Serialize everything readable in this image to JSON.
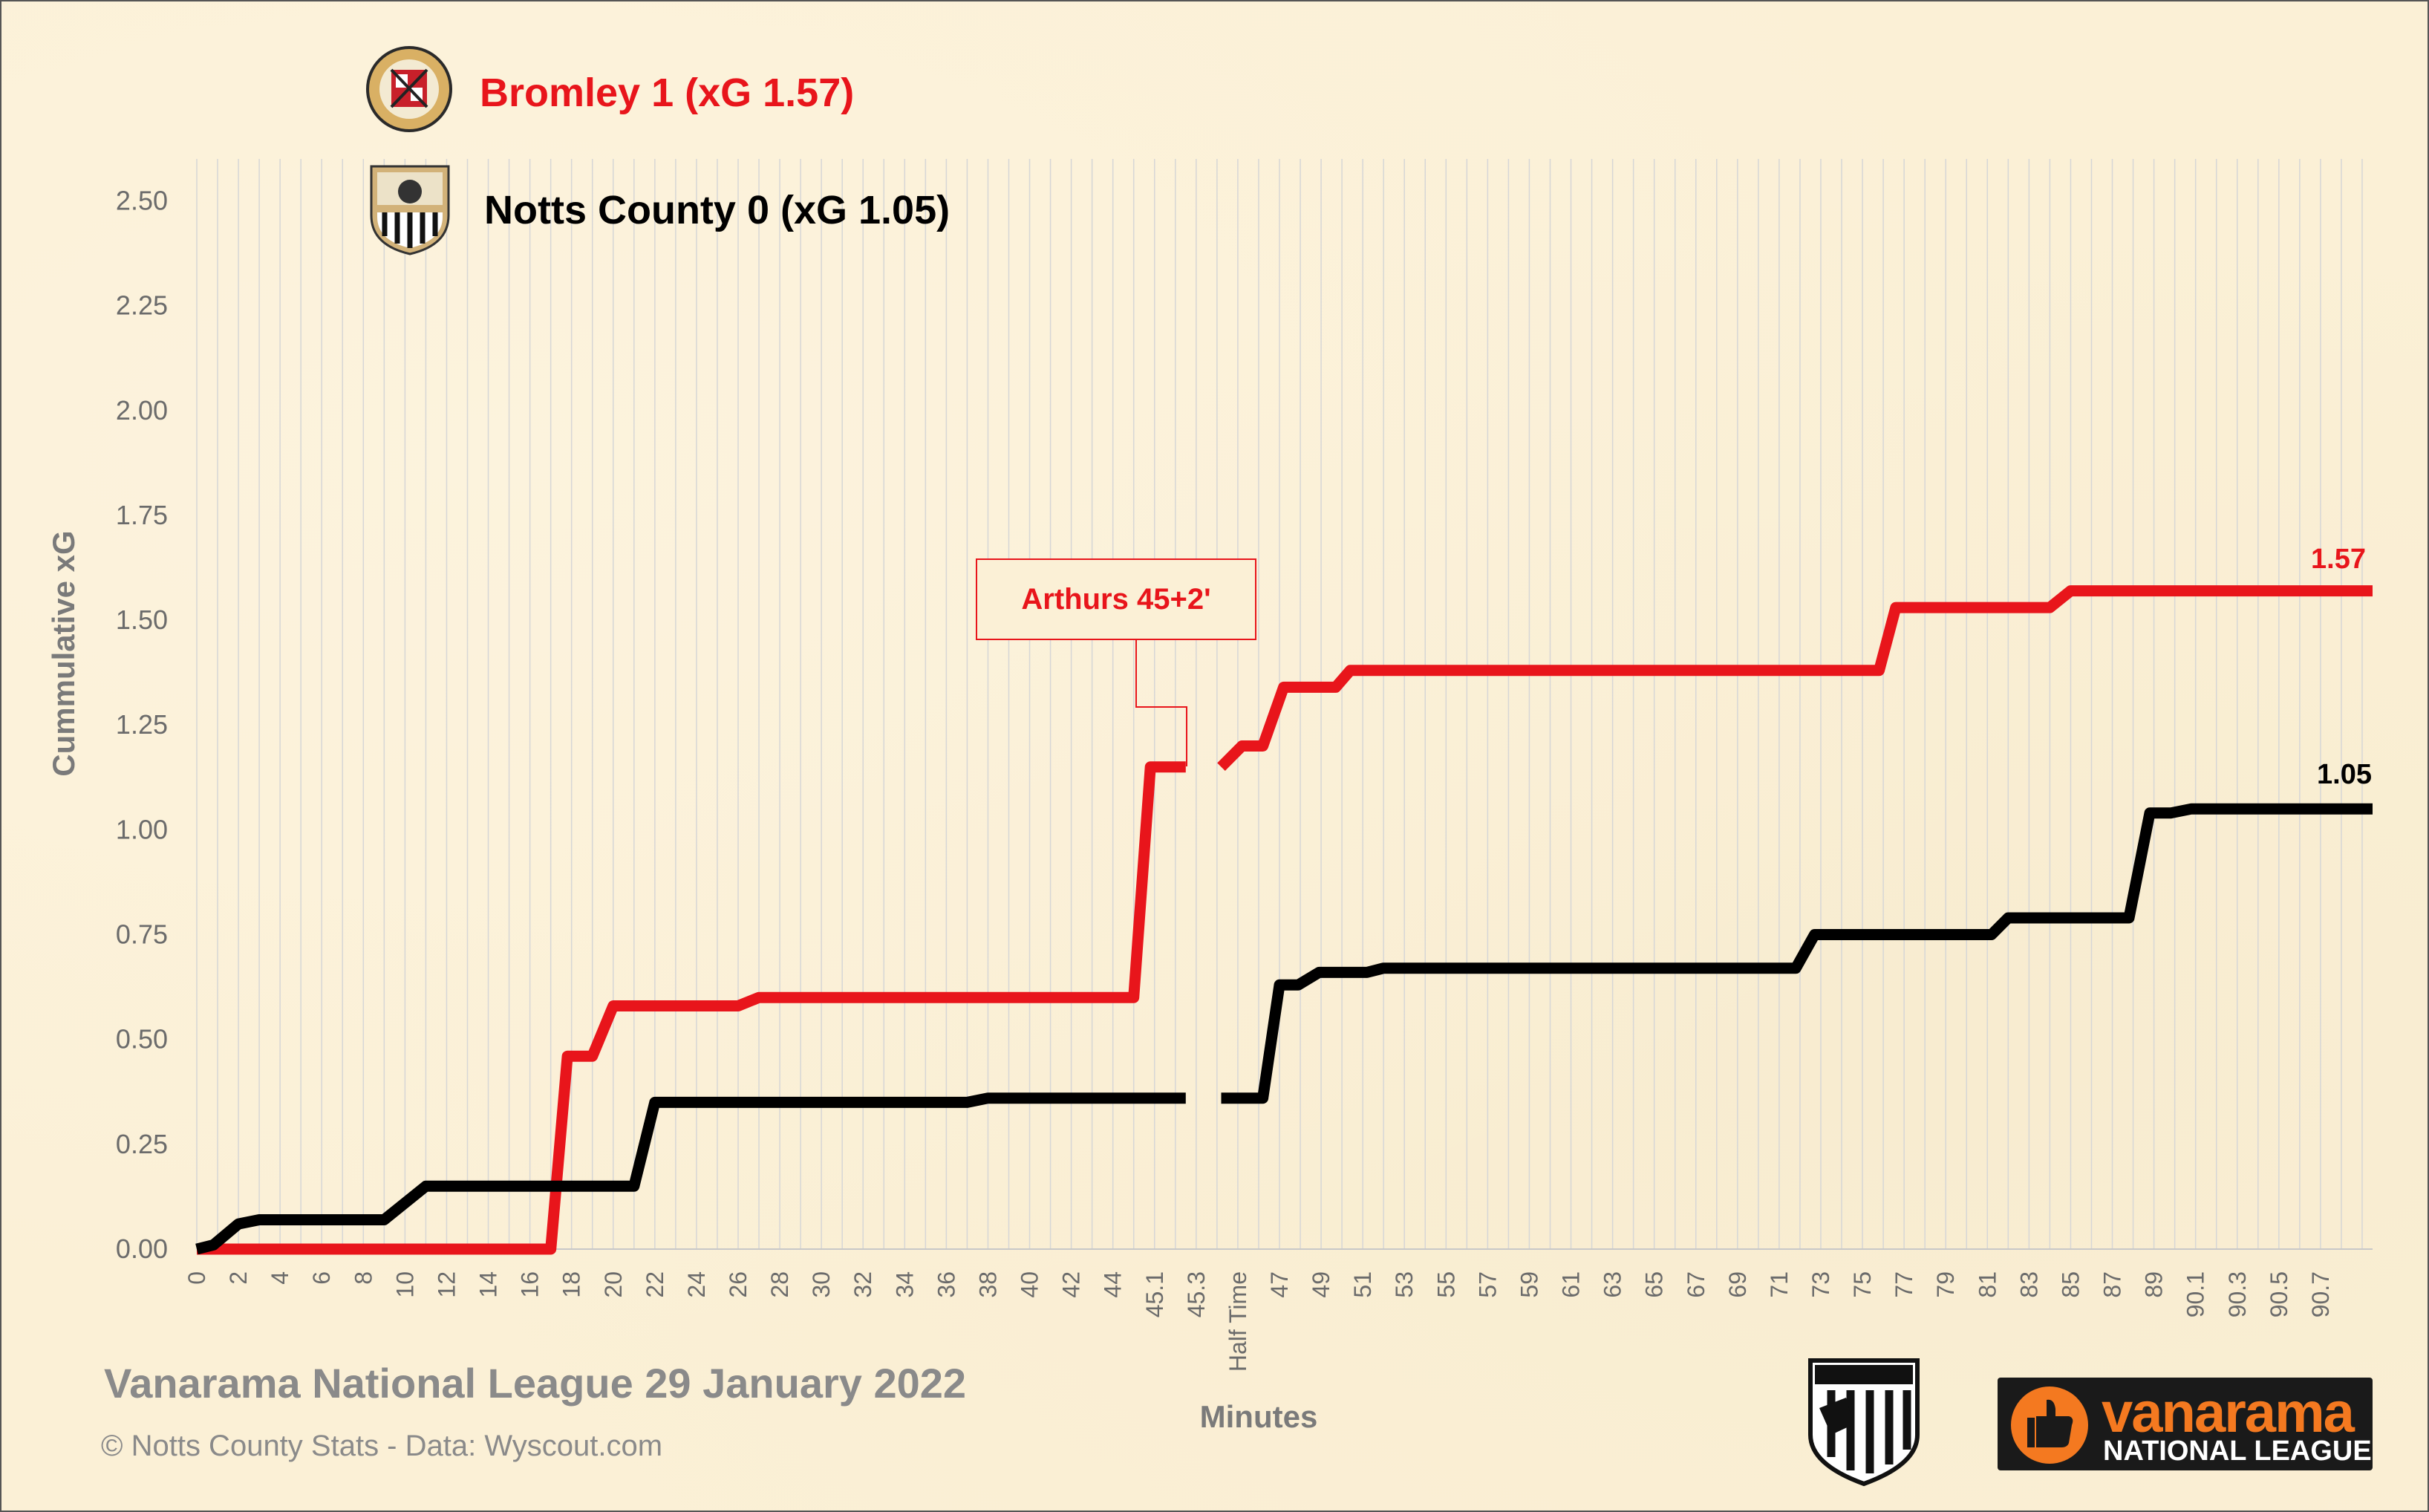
{
  "chart_data": {
    "type": "line",
    "ylabel": "Cummulative  xG",
    "xlabel": "Minutes",
    "ylim": [
      0,
      2.6
    ],
    "y_ticks": [
      "0.00",
      "0.25",
      "0.50",
      "0.75",
      "1.00",
      "1.25",
      "1.50",
      "1.75",
      "2.00",
      "2.25",
      "2.50"
    ],
    "x_tick_labels": [
      "0",
      "2",
      "4",
      "6",
      "8",
      "10",
      "12",
      "14",
      "16",
      "18",
      "20",
      "22",
      "24",
      "26",
      "28",
      "30",
      "32",
      "34",
      "36",
      "38",
      "40",
      "42",
      "44",
      "45.1",
      "45.3",
      "Half Time",
      "47",
      "49",
      "51",
      "53",
      "55",
      "57",
      "59",
      "61",
      "63",
      "65",
      "67",
      "69",
      "71",
      "73",
      "75",
      "77",
      "79",
      "81",
      "83",
      "85",
      "87",
      "89",
      "90.1",
      "90.3",
      "90.5",
      "90.7"
    ],
    "grid": "vertical",
    "series": [
      {
        "name": "Bromley 1 (xG 1.57)",
        "color": "#e8151b",
        "end_label": "1.57",
        "first_half": [
          [
            0,
            0
          ],
          [
            17,
            0
          ],
          [
            17.8,
            0.46
          ],
          [
            19,
            0.46
          ],
          [
            20,
            0.58
          ],
          [
            26,
            0.58
          ],
          [
            27,
            0.6
          ],
          [
            45,
            0.6
          ],
          [
            45.8,
            1.15
          ],
          [
            47.5,
            1.15
          ]
        ],
        "second_half": [
          [
            49.2,
            1.15
          ],
          [
            50.2,
            1.2
          ],
          [
            51.2,
            1.2
          ],
          [
            52.2,
            1.34
          ],
          [
            54.7,
            1.34
          ],
          [
            55.4,
            1.38
          ],
          [
            80.8,
            1.38
          ],
          [
            81.6,
            1.53
          ],
          [
            89,
            1.53
          ],
          [
            90,
            1.57
          ],
          [
            104.5,
            1.57
          ]
        ]
      },
      {
        "name": "Notts County 0 (xG 1.05)",
        "color": "#000000",
        "end_label": "1.05",
        "first_half": [
          [
            0,
            0
          ],
          [
            0.8,
            0.01
          ],
          [
            2,
            0.06
          ],
          [
            3,
            0.07
          ],
          [
            9,
            0.07
          ],
          [
            11,
            0.15
          ],
          [
            21,
            0.15
          ],
          [
            22,
            0.35
          ],
          [
            37,
            0.35
          ],
          [
            38,
            0.36
          ],
          [
            47.5,
            0.36
          ]
        ],
        "second_half": [
          [
            49.2,
            0.36
          ],
          [
            51.2,
            0.36
          ],
          [
            52.0,
            0.63
          ],
          [
            52.9,
            0.63
          ],
          [
            53.9,
            0.66
          ],
          [
            56.2,
            0.66
          ],
          [
            57,
            0.67
          ],
          [
            76.8,
            0.67
          ],
          [
            77.7,
            0.75
          ],
          [
            86.2,
            0.75
          ],
          [
            87,
            0.79
          ],
          [
            92.8,
            0.79
          ],
          [
            93.8,
            1.04
          ],
          [
            94.8,
            1.04
          ],
          [
            95.8,
            1.05
          ],
          [
            104.5,
            1.05
          ]
        ]
      }
    ],
    "annotations": [
      {
        "text": "Arthurs 45+2'"
      }
    ]
  },
  "footer": {
    "title": "Vanarama National League 29 January 2022",
    "credit": "© Notts County Stats - Data: Wyscout.com"
  },
  "logos": {
    "bromley_badge": "bromley-fc-crest",
    "notts_badge": "notts-county-crest",
    "ncs_badge": "notts-county-stats-crest",
    "sponsor_brand": "vanarama",
    "sponsor_sub": "NATIONAL LEAGUE"
  }
}
